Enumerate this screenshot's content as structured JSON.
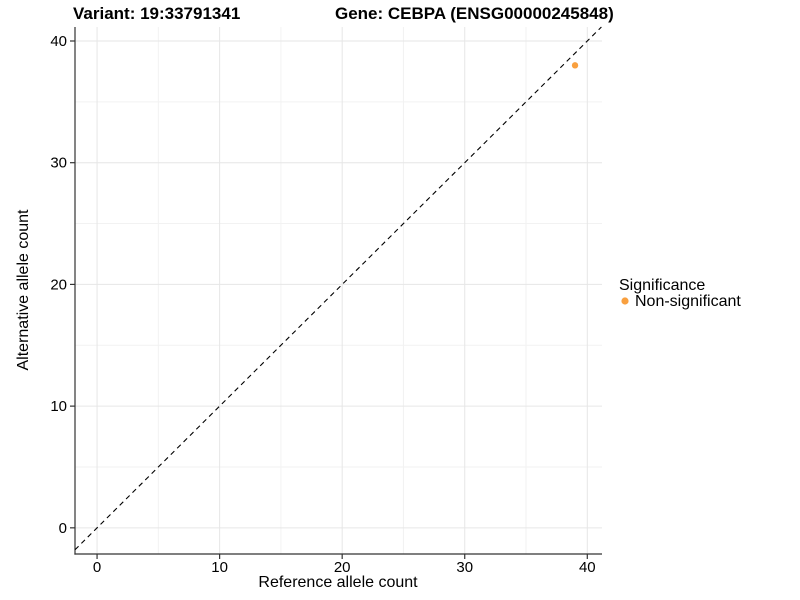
{
  "chart_data": {
    "type": "scatter",
    "titles": {
      "left": "Variant: 19:33791341",
      "right": "Gene: CEBPA (ENSG00000245848)"
    },
    "xlabel": "Reference allele count",
    "ylabel": "Alternative allele count",
    "xlim": [
      -1.8,
      41.2
    ],
    "ylim": [
      -2.15,
      41.15
    ],
    "xticks": [
      0,
      10,
      20,
      30,
      40
    ],
    "yticks": [
      0,
      10,
      20,
      30,
      40
    ],
    "minor_ticks_x": [
      5,
      15,
      25,
      35
    ],
    "minor_ticks_y": [
      5,
      15,
      25,
      35
    ],
    "grid": {
      "major": true,
      "minor": true
    },
    "identity_line": {
      "type": "y=x",
      "style": "dashed",
      "color": "#000000"
    },
    "series": [
      {
        "name": "Non-significant",
        "color": "#F9A03F",
        "marker": "circle",
        "size": 3.2,
        "points": [
          {
            "x": 39,
            "y": 38
          }
        ]
      }
    ],
    "legend": {
      "title": "Significance",
      "position": "right",
      "items": [
        {
          "label": "Non-significant",
          "color": "#F9A03F"
        }
      ]
    },
    "colors": {
      "background": "#FFFFFF",
      "grid_major": "#E6E6E6",
      "grid_minor": "#F2F2F2",
      "axis_line": "#333333",
      "text": "#000000"
    }
  }
}
